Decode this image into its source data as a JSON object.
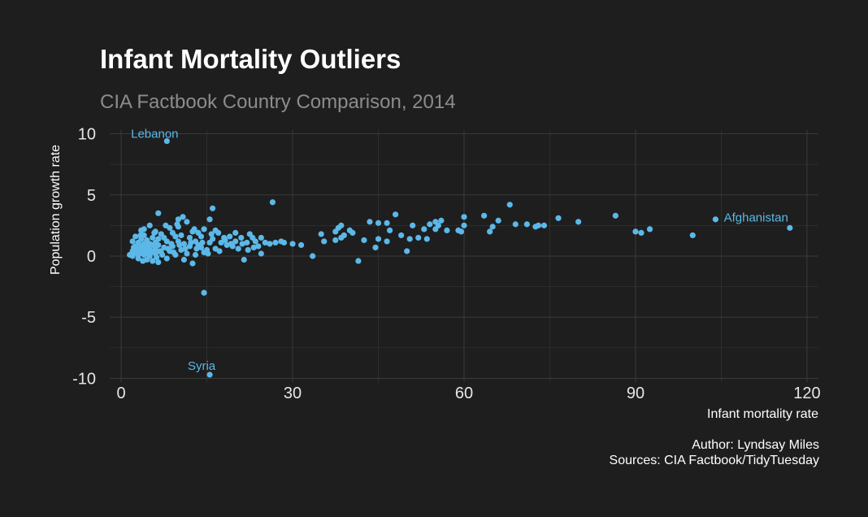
{
  "title": "Infant Mortality Outliers",
  "subtitle": "CIA Factbook Country Comparison, 2014",
  "caption": {
    "author": "Author: Lyndsay Miles",
    "sources": "Sources: CIA Factbook/TidyTuesday"
  },
  "colors": {
    "background": "#1e1e1e",
    "points": "#5bb8e8",
    "grid": "#3a3a3a"
  },
  "chart_data": {
    "type": "scatter",
    "title": "Infant Mortality Outliers",
    "subtitle": "CIA Factbook Country Comparison, 2014",
    "xlabel": "Infant mortality rate",
    "ylabel": "Population growth rate",
    "xlim": [
      -2,
      122
    ],
    "ylim": [
      -10.3,
      10.3
    ],
    "xticks": [
      0,
      30,
      60,
      90,
      120
    ],
    "yticks": [
      -10,
      -5,
      0,
      5,
      10
    ],
    "grid": true,
    "annotations": [
      {
        "label": "Lebanon",
        "x": 8,
        "y": 9.4
      },
      {
        "label": "Syria",
        "x": 15.5,
        "y": -9.7
      },
      {
        "label": "Afghanistan",
        "x": 117,
        "y": 2.3
      }
    ],
    "points": [
      [
        8,
        9.4
      ],
      [
        15.5,
        -9.7
      ],
      [
        14.5,
        -3.0
      ],
      [
        117,
        2.3
      ],
      [
        104,
        3.0
      ],
      [
        100,
        1.7
      ],
      [
        92.5,
        2.2
      ],
      [
        91,
        1.9
      ],
      [
        90,
        2.0
      ],
      [
        86.5,
        3.3
      ],
      [
        80,
        2.8
      ],
      [
        76.5,
        3.1
      ],
      [
        74,
        2.5
      ],
      [
        73,
        2.5
      ],
      [
        72.5,
        2.4
      ],
      [
        71,
        2.6
      ],
      [
        69,
        2.6
      ],
      [
        68,
        4.2
      ],
      [
        66,
        2.9
      ],
      [
        65,
        2.4
      ],
      [
        64.5,
        2.0
      ],
      [
        63.5,
        3.3
      ],
      [
        60,
        3.2
      ],
      [
        60,
        2.5
      ],
      [
        59.5,
        2.0
      ],
      [
        59,
        2.1
      ],
      [
        57,
        2.1
      ],
      [
        56,
        2.9
      ],
      [
        55.5,
        2.5
      ],
      [
        55,
        2.8
      ],
      [
        55,
        2.2
      ],
      [
        54,
        2.6
      ],
      [
        53.5,
        1.4
      ],
      [
        53,
        2.2
      ],
      [
        52,
        1.5
      ],
      [
        51,
        2.5
      ],
      [
        50.5,
        1.4
      ],
      [
        50,
        0.4
      ],
      [
        49,
        1.7
      ],
      [
        48,
        3.4
      ],
      [
        47,
        2.1
      ],
      [
        46.5,
        1.2
      ],
      [
        46.5,
        2.7
      ],
      [
        45,
        2.7
      ],
      [
        45,
        1.4
      ],
      [
        44.5,
        0.7
      ],
      [
        43.5,
        2.8
      ],
      [
        42.5,
        1.3
      ],
      [
        41.5,
        -0.4
      ],
      [
        40.5,
        1.9
      ],
      [
        40,
        2.1
      ],
      [
        39,
        1.7
      ],
      [
        38.5,
        1.5
      ],
      [
        38.5,
        2.5
      ],
      [
        38,
        2.3
      ],
      [
        37.5,
        1.3
      ],
      [
        37.5,
        2.0
      ],
      [
        35.5,
        1.2
      ],
      [
        35,
        1.8
      ],
      [
        33.5,
        0.0
      ],
      [
        31.5,
        0.9
      ],
      [
        28.5,
        1.1
      ],
      [
        27,
        1.1
      ],
      [
        26.5,
        4.4
      ],
      [
        26,
        1.0
      ],
      [
        24.5,
        1.5
      ],
      [
        24.5,
        0.2
      ],
      [
        24,
        0.8
      ],
      [
        23.5,
        1.2
      ],
      [
        23,
        1.5
      ],
      [
        22.5,
        1.8
      ],
      [
        22,
        1.1
      ],
      [
        21.5,
        -0.3
      ],
      [
        21,
        1.5
      ],
      [
        20.5,
        0.6
      ],
      [
        20,
        1.9
      ],
      [
        20,
        1.2
      ],
      [
        19.5,
        0.8
      ],
      [
        19,
        1.6
      ],
      [
        18.5,
        0.9
      ],
      [
        18,
        1.5
      ],
      [
        17.5,
        1.1
      ],
      [
        17,
        1.9
      ],
      [
        16.5,
        0.6
      ],
      [
        16.5,
        2.1
      ],
      [
        16,
        1.4
      ],
      [
        16,
        3.9
      ],
      [
        15.5,
        1.1
      ],
      [
        15.5,
        3.0
      ],
      [
        15,
        0.5
      ],
      [
        14.5,
        2.2
      ],
      [
        14.5,
        0.3
      ],
      [
        14,
        1.6
      ],
      [
        14,
        0.7
      ],
      [
        13.5,
        0.9
      ],
      [
        13.5,
        1.9
      ],
      [
        13,
        0.1
      ],
      [
        13,
        1.2
      ],
      [
        12.5,
        -0.6
      ],
      [
        12.5,
        2.0
      ],
      [
        12,
        0.8
      ],
      [
        12,
        1.5
      ],
      [
        11.5,
        0.2
      ],
      [
        11.5,
        2.8
      ],
      [
        11,
        1.0
      ],
      [
        11,
        -0.3
      ],
      [
        10.5,
        1.7
      ],
      [
        10.5,
        0.5
      ],
      [
        10,
        1.2
      ],
      [
        10,
        2.4
      ],
      [
        10,
        3.0
      ],
      [
        9.5,
        0.1
      ],
      [
        9.5,
        1.6
      ],
      [
        9,
        0.8
      ],
      [
        9,
        1.9
      ],
      [
        8.5,
        0.4
      ],
      [
        8.5,
        2.3
      ],
      [
        8,
        1.2
      ],
      [
        8,
        -0.2
      ],
      [
        7.5,
        0.7
      ],
      [
        7.5,
        1.5
      ],
      [
        7,
        0.3
      ],
      [
        7,
        1.8
      ],
      [
        6.5,
        -0.5
      ],
      [
        6.5,
        0.9
      ],
      [
        6.5,
        1.4
      ],
      [
        6.5,
        3.5
      ],
      [
        6,
        0.2
      ],
      [
        6,
        0.6
      ],
      [
        6,
        1.1
      ],
      [
        6,
        2.0
      ],
      [
        5.5,
        -0.4
      ],
      [
        5.5,
        0.4
      ],
      [
        5.5,
        0.9
      ],
      [
        5.5,
        1.5
      ],
      [
        5,
        0.0
      ],
      [
        5,
        0.5
      ],
      [
        5,
        1.0
      ],
      [
        5,
        2.5
      ],
      [
        4.5,
        0.2
      ],
      [
        4.5,
        0.7
      ],
      [
        4.5,
        1.3
      ],
      [
        4.5,
        -0.3
      ],
      [
        4,
        0.1
      ],
      [
        4,
        0.6
      ],
      [
        4,
        1.0
      ],
      [
        4,
        1.7
      ],
      [
        3.5,
        0.3
      ],
      [
        3.5,
        0.8
      ],
      [
        3.5,
        1.4
      ],
      [
        3.5,
        2.1
      ],
      [
        3,
        0.1
      ],
      [
        3,
        0.5
      ],
      [
        3,
        1.1
      ],
      [
        3,
        -0.2
      ],
      [
        2.5,
        0.3
      ],
      [
        2.5,
        0.8
      ],
      [
        2.5,
        1.6
      ],
      [
        2,
        0.0
      ],
      [
        2,
        0.4
      ],
      [
        2,
        1.2
      ],
      [
        1.5,
        0.1
      ],
      [
        4,
        2.2
      ],
      [
        2.8,
        0.6
      ],
      [
        3.2,
        0.2
      ],
      [
        4.2,
        0.4
      ],
      [
        5.2,
        0.3
      ],
      [
        6.2,
        -0.1
      ],
      [
        3.8,
        -0.4
      ],
      [
        4.8,
        0.9
      ],
      [
        7.2,
        0.1
      ],
      [
        8.2,
        0.6
      ],
      [
        9.2,
        0.3
      ],
      [
        10.2,
        0.9
      ],
      [
        11.2,
        0.6
      ],
      [
        12.2,
        1.1
      ],
      [
        13.2,
        0.6
      ],
      [
        14.2,
        1.1
      ],
      [
        15.2,
        0.2
      ],
      [
        17.2,
        0.4
      ],
      [
        18.2,
        1.3
      ],
      [
        19.2,
        1.0
      ],
      [
        21.2,
        1.0
      ],
      [
        22.2,
        0.5
      ],
      [
        23.2,
        0.7
      ],
      [
        25.2,
        1.1
      ],
      [
        28,
        1.2
      ],
      [
        30,
        1.0
      ],
      [
        2.2,
        0.7
      ],
      [
        3.4,
        1.7
      ],
      [
        5.8,
        1.9
      ],
      [
        7.8,
        2.5
      ],
      [
        9.8,
        2.6
      ],
      [
        10.8,
        3.2
      ],
      [
        6.8,
        0.4
      ],
      [
        8.8,
        1.0
      ],
      [
        12.8,
        2.2
      ],
      [
        15.8,
        1.8
      ]
    ]
  }
}
